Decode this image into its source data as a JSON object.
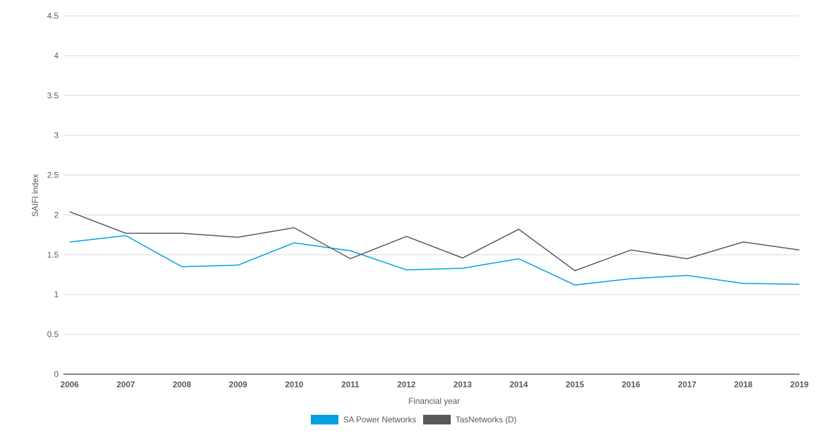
{
  "chart_data": {
    "type": "line",
    "title": "",
    "xlabel": "Financial year",
    "ylabel": "SAIFI index",
    "ylim": [
      0,
      4.5
    ],
    "yticks": [
      0,
      0.5,
      1,
      1.5,
      2,
      2.5,
      3,
      3.5,
      4,
      4.5
    ],
    "grid": true,
    "legend_position": "bottom-center",
    "x": [
      "2006",
      "2007",
      "2008",
      "2009",
      "2010",
      "2011",
      "2012",
      "2013",
      "2014",
      "2015",
      "2016",
      "2017",
      "2018",
      "2019"
    ],
    "series": [
      {
        "name": "SA Power Networks",
        "color": "#00a0e0",
        "values": [
          1.66,
          1.74,
          1.35,
          1.37,
          1.65,
          1.55,
          1.31,
          1.33,
          1.45,
          1.12,
          1.2,
          1.24,
          1.14,
          1.13
        ]
      },
      {
        "name": "TasNetworks (D)",
        "color": "#595959",
        "values": [
          2.04,
          1.77,
          1.77,
          1.72,
          1.84,
          1.45,
          1.73,
          1.46,
          1.82,
          1.3,
          1.56,
          1.45,
          1.66,
          1.56
        ]
      }
    ]
  },
  "colors": {
    "grid": "#d9d9d9",
    "axis": "#595959"
  }
}
